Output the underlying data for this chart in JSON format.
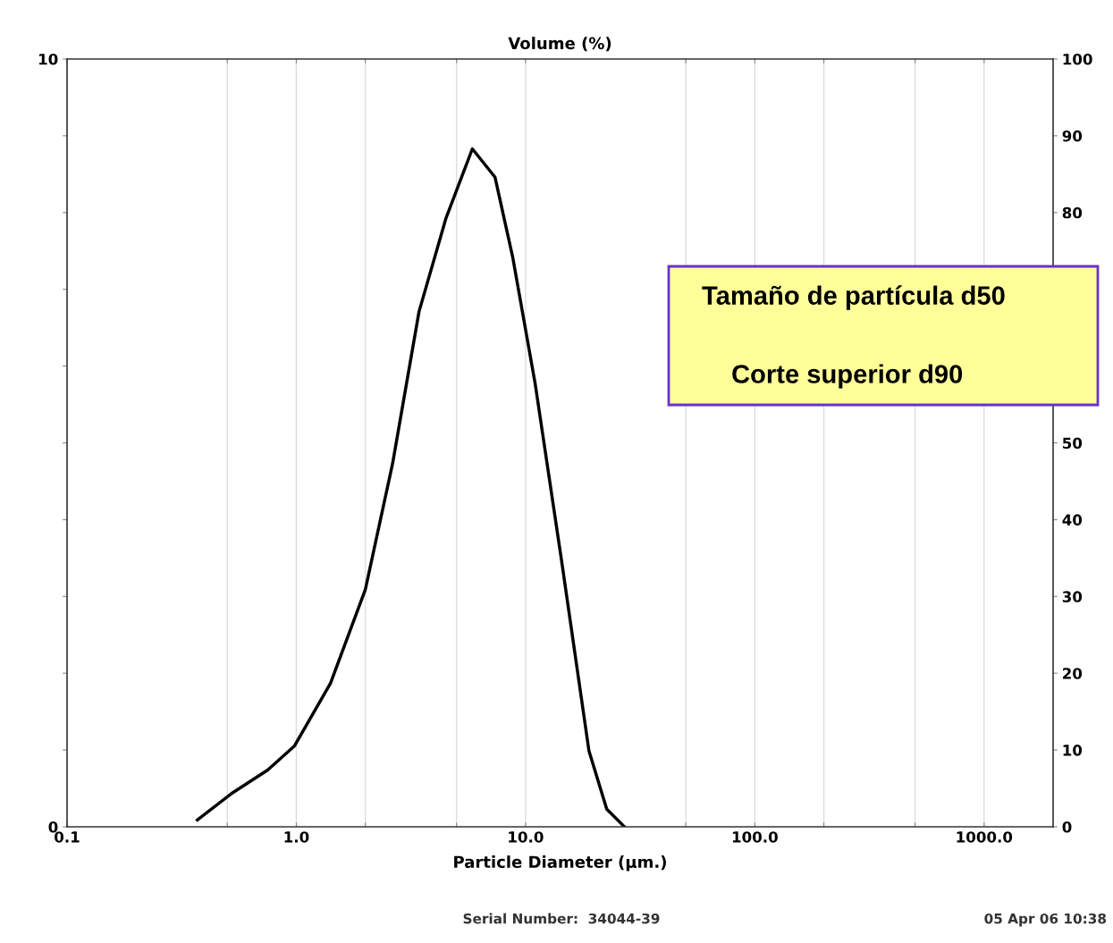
{
  "chart_data": {
    "type": "line",
    "title": "Volume (%)",
    "xlabel": "Particle Diameter (μm.)",
    "x": [
      0.37,
      0.52,
      0.75,
      0.98,
      1.41,
      2.0,
      2.63,
      3.43,
      4.5,
      5.86,
      7.36,
      8.8,
      11.0,
      14.4,
      18.9,
      22.6,
      27.0
    ],
    "series": [
      {
        "color": "#000000",
        "values": [
          0.09,
          0.43,
          0.74,
          1.05,
          1.87,
          3.09,
          4.73,
          6.71,
          7.93,
          8.83,
          8.46,
          7.41,
          5.78,
          3.44,
          0.99,
          0.23,
          0
        ]
      }
    ],
    "log": "x",
    "xlim": [
      0.1,
      2000
    ],
    "xticks": [
      {
        "value": 0.1,
        "label": "0.1"
      },
      {
        "value": 0.5,
        "label": null
      },
      {
        "value": 1,
        "label": "1.0"
      },
      {
        "value": 2,
        "label": null
      },
      {
        "value": 5,
        "label": null
      },
      {
        "value": 10,
        "label": "10.0"
      },
      {
        "value": 50,
        "label": null
      },
      {
        "value": 100,
        "label": "100.0"
      },
      {
        "value": 200,
        "label": null
      },
      {
        "value": 500,
        "label": null
      },
      {
        "value": 1000,
        "label": "1000.0"
      }
    ],
    "ylim": [
      0,
      10
    ],
    "yticks": [
      0,
      {
        "value": 1,
        "label": null
      },
      {
        "value": 2,
        "label": null
      },
      {
        "value": 3,
        "label": null
      },
      {
        "value": 4,
        "label": null
      },
      {
        "value": 5,
        "label": null
      },
      {
        "value": 6,
        "label": null
      },
      {
        "value": 7,
        "label": null
      },
      {
        "value": 8,
        "label": null
      },
      {
        "value": 9,
        "label": null
      },
      10
    ],
    "y2lim": [
      0,
      100
    ],
    "y2ticks": [
      0,
      10,
      20,
      30,
      40,
      50,
      80,
      90,
      100
    ],
    "grid": "x",
    "line_style": "solid",
    "marker": "none",
    "annotations": [
      "Tamaño de partícula d50",
      "Corte superior d90",
      "Serial Number:  34044-39",
      "05 Apr 06 10:38"
    ]
  }
}
